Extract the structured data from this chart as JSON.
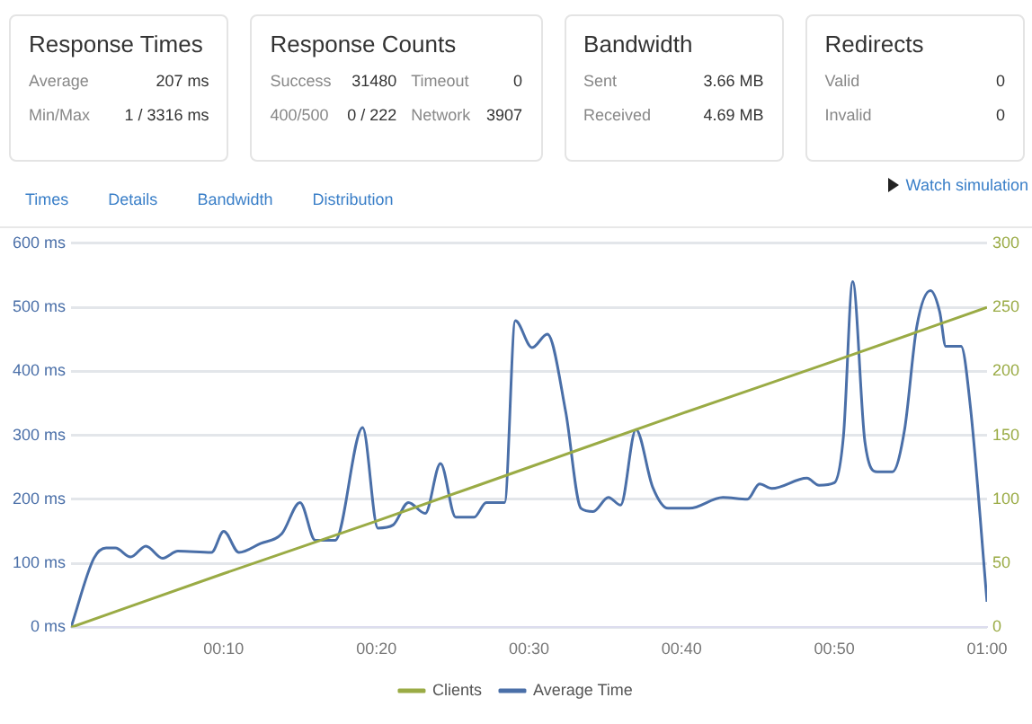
{
  "chart_data": [
    {
      "type": "other",
      "title": "Response Times",
      "annotations": [
        "Average",
        "207 ms",
        "Min/Max",
        "1 / 3316 ms"
      ]
    },
    {
      "type": "other",
      "title": "Response Counts",
      "annotations": [
        "Success",
        "31480",
        "Timeout",
        "0",
        "400/500",
        "0 / 222",
        "Network",
        "3907"
      ]
    },
    {
      "type": "other",
      "title": "Bandwidth",
      "annotations": [
        "Sent",
        "3.66 MB",
        "Received",
        "4.69 MB"
      ]
    },
    {
      "type": "other",
      "title": "Redirects",
      "annotations": [
        "Valid",
        "0",
        "Invalid",
        "0"
      ]
    },
    {
      "type": "line",
      "annotations": [
        "Times",
        "Details",
        "Bandwidth",
        "Distribution",
        "Watch simulation"
      ],
      "xlim": [
        0,
        60
      ],
      "xticks": [
        {
          "value": 10,
          "label": "00:10"
        },
        {
          "value": 20,
          "label": "00:20"
        },
        {
          "value": 30,
          "label": "00:30"
        },
        {
          "value": 40,
          "label": "00:40"
        },
        {
          "value": 50,
          "label": "00:50"
        },
        {
          "value": 60,
          "label": "01:00"
        }
      ],
      "ylim": [
        0,
        600
      ],
      "yticks": [
        {
          "value": 0,
          "label": "0 ms"
        },
        {
          "value": 100,
          "label": "100 ms"
        },
        {
          "value": 200,
          "label": "200 ms"
        },
        {
          "value": 300,
          "label": "300 ms"
        },
        {
          "value": 400,
          "label": "400 ms"
        },
        {
          "value": 500,
          "label": "500 ms"
        },
        {
          "value": 600,
          "label": "600 ms"
        }
      ],
      "y2lim": [
        0,
        300
      ],
      "y2ticks": [
        0,
        50,
        100,
        150,
        200,
        250,
        300
      ],
      "grid": "y",
      "legend": "bottom",
      "marker": "none",
      "line_style": "solid",
      "series": [
        {
          "name": "Clients",
          "color": "#9aab45",
          "axis": "y2",
          "x": [
            0,
            10,
            20,
            30,
            40,
            50,
            60
          ],
          "values": [
            0,
            42,
            83,
            125,
            167,
            208,
            250
          ]
        },
        {
          "name": "Average Time",
          "color": "#4a6fa8",
          "axis": "y",
          "x": [
            0,
            1.5,
            2.3,
            2.9,
            3.9,
            4.9,
            6,
            7,
            9.2,
            10,
            11,
            12.4,
            13.8,
            15,
            16,
            17.3,
            19.1,
            20.1,
            21.1,
            22.1,
            23.2,
            24.2,
            25.2,
            26.4,
            27.2,
            28.4,
            29.1,
            30.2,
            31.2,
            32.4,
            33.4,
            34.2,
            35.2,
            36,
            37,
            38.1,
            39.1,
            40.5,
            42.7,
            44.3,
            45.1,
            45.9,
            48.2,
            49,
            50,
            50.6,
            51.2,
            52,
            52.8,
            53.8,
            54.6,
            55.4,
            56.3,
            56.9,
            57.3,
            58.3,
            58.9,
            60
          ],
          "values": [
            0,
            108,
            124,
            124,
            110,
            127,
            108,
            119,
            117,
            150,
            117,
            131,
            146,
            195,
            136,
            136,
            312,
            155,
            160,
            195,
            178,
            256,
            172,
            172,
            195,
            195,
            479,
            437,
            458,
            337,
            186,
            181,
            203,
            191,
            309,
            219,
            186,
            186,
            203,
            200,
            224,
            217,
            233,
            222,
            226,
            300,
            540,
            290,
            243,
            243,
            309,
            470,
            526,
            493,
            439,
            439,
            347,
            40
          ]
        }
      ]
    }
  ]
}
